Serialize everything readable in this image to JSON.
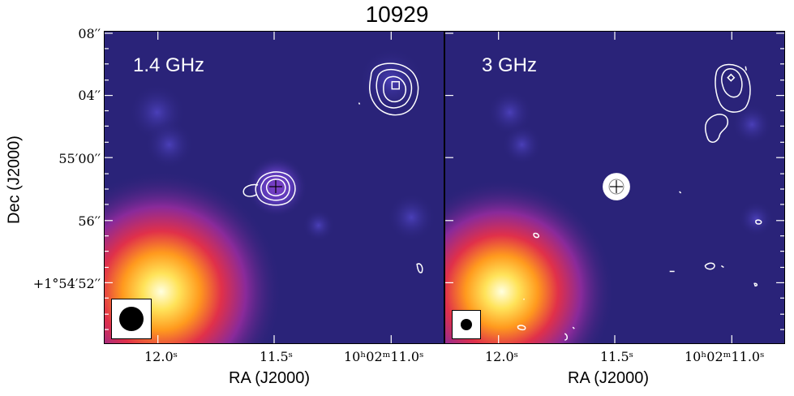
{
  "title": "10929",
  "panels": [
    {
      "label": "1.4 GHz"
    },
    {
      "label": "3 GHz"
    }
  ],
  "axes": {
    "ylabel": "Dec (J2000)",
    "xlabel": "RA (J2000)",
    "yticks": [
      "08′′",
      "04′′",
      "55′00′′",
      "56′′",
      "+1°54′52′′"
    ],
    "xticks": [
      "12.0ˢ",
      "11.5ˢ",
      "10ʰ02ᵐ11.0ˢ"
    ]
  },
  "colors": {
    "background": "#2a2379",
    "contour": "#ffffff",
    "hot": "#fff6b0"
  }
}
